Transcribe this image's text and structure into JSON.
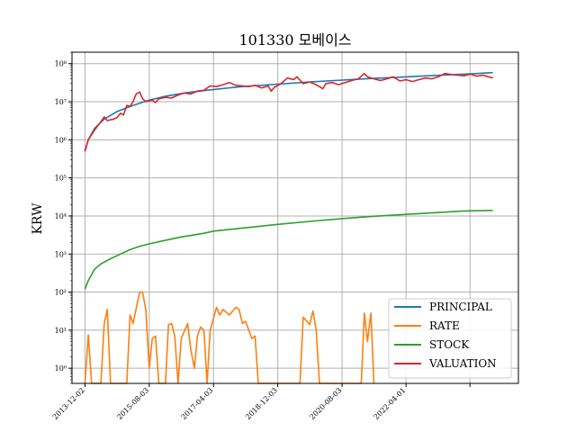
{
  "chart_data": {
    "type": "line",
    "title": "101330 모베이스",
    "xlabel": "",
    "ylabel": "KRW",
    "y_scale": "log",
    "ylim": [
      0.4,
      200000000
    ],
    "xlim": [
      "2013-08-01",
      "2025-03-01"
    ],
    "grid": true,
    "legend_position": "bottom-right",
    "x_ticks": [
      "2013-12-02",
      "2015-08-03",
      "2017-04-03",
      "2018-12-03",
      "2020-08-03",
      "2022-04-01"
    ],
    "y_ticks": [
      {
        "value": 1,
        "label": "10⁰"
      },
      {
        "value": 10,
        "label": "10¹"
      },
      {
        "value": 100,
        "label": "10²"
      },
      {
        "value": 1000,
        "label": "10³"
      },
      {
        "value": 10000,
        "label": "10⁴"
      },
      {
        "value": 100000,
        "label": "10⁵"
      },
      {
        "value": 1000000,
        "label": "10⁶"
      },
      {
        "value": 10000000,
        "label": "10⁷"
      },
      {
        "value": 100000000,
        "label": "10⁸"
      }
    ],
    "series": [
      {
        "name": "PRINCIPAL",
        "color": "#1f77b4",
        "points": [
          [
            "2013-12-02",
            500000
          ],
          [
            "2014-01-02",
            1000000
          ],
          [
            "2014-03-03",
            2000000
          ],
          [
            "2014-06-02",
            3500000
          ],
          [
            "2014-10-01",
            5500000
          ],
          [
            "2015-03-02",
            8000000
          ],
          [
            "2015-08-03",
            11000000
          ],
          [
            "2016-01-04",
            14000000
          ],
          [
            "2016-08-01",
            17500000
          ],
          [
            "2017-04-03",
            21000000
          ],
          [
            "2018-01-02",
            25000000
          ],
          [
            "2018-12-03",
            29000000
          ],
          [
            "2019-10-01",
            33000000
          ],
          [
            "2020-08-03",
            37000000
          ],
          [
            "2021-06-01",
            41000000
          ],
          [
            "2022-04-01",
            45000000
          ],
          [
            "2023-01-02",
            49000000
          ],
          [
            "2023-10-04",
            53000000
          ],
          [
            "2024-07-01",
            58000000
          ]
        ]
      },
      {
        "name": "RATE",
        "color": "#ff7f0e",
        "points": [
          [
            "2013-12-02",
            0.3
          ],
          [
            "2014-01-02",
            7.5
          ],
          [
            "2014-02-03",
            0.3
          ],
          [
            "2014-05-02",
            0.3
          ],
          [
            "2014-06-02",
            15
          ],
          [
            "2014-07-01",
            35
          ],
          [
            "2014-08-01",
            0.3
          ],
          [
            "2015-01-02",
            0.3
          ],
          [
            "2015-02-02",
            25
          ],
          [
            "2015-03-02",
            15
          ],
          [
            "2015-05-04",
            100
          ],
          [
            "2015-06-01",
            100
          ],
          [
            "2015-07-01",
            35
          ],
          [
            "2015-08-03",
            1
          ],
          [
            "2015-09-01",
            6
          ],
          [
            "2015-10-01",
            7
          ],
          [
            "2015-11-02",
            0.3
          ],
          [
            "2016-01-04",
            0.3
          ],
          [
            "2016-02-01",
            14
          ],
          [
            "2016-03-02",
            15
          ],
          [
            "2016-04-01",
            7
          ],
          [
            "2016-05-02",
            0.3
          ],
          [
            "2016-06-01",
            6
          ],
          [
            "2016-08-01",
            15
          ],
          [
            "2016-09-01",
            3
          ],
          [
            "2016-10-04",
            1
          ],
          [
            "2016-11-01",
            7
          ],
          [
            "2016-12-01",
            12
          ],
          [
            "2017-01-02",
            10
          ],
          [
            "2017-02-01",
            0.3
          ],
          [
            "2017-03-02",
            10
          ],
          [
            "2017-04-03",
            20
          ],
          [
            "2017-05-01",
            40
          ],
          [
            "2017-06-01",
            25
          ],
          [
            "2017-07-03",
            35
          ],
          [
            "2017-09-01",
            25
          ],
          [
            "2017-11-01",
            40
          ],
          [
            "2017-12-01",
            35
          ],
          [
            "2018-01-02",
            15
          ],
          [
            "2018-02-01",
            17
          ],
          [
            "2018-04-02",
            6
          ],
          [
            "2018-05-02",
            7
          ],
          [
            "2018-06-01",
            0.3
          ],
          [
            "2019-07-01",
            0.3
          ],
          [
            "2019-08-01",
            22
          ],
          [
            "2019-10-01",
            14
          ],
          [
            "2019-11-01",
            32
          ],
          [
            "2019-12-02",
            10
          ],
          [
            "2020-01-02",
            0.3
          ],
          [
            "2021-02-01",
            0.3
          ],
          [
            "2021-03-02",
            28
          ],
          [
            "2021-04-01",
            5
          ],
          [
            "2021-05-03",
            28
          ],
          [
            "2021-06-01",
            0.3
          ]
        ]
      },
      {
        "name": "STOCK",
        "color": "#2ca02c",
        "points": [
          [
            "2013-12-02",
            120
          ],
          [
            "2014-01-02",
            200
          ],
          [
            "2014-03-03",
            400
          ],
          [
            "2014-05-02",
            550
          ],
          [
            "2014-08-01",
            750
          ],
          [
            "2014-11-03",
            1000
          ],
          [
            "2015-02-02",
            1300
          ],
          [
            "2015-05-04",
            1600
          ],
          [
            "2015-08-03",
            1850
          ],
          [
            "2015-12-01",
            2200
          ],
          [
            "2016-06-01",
            2800
          ],
          [
            "2017-01-02",
            3500
          ],
          [
            "2017-04-03",
            4000
          ],
          [
            "2018-01-02",
            4800
          ],
          [
            "2018-12-03",
            6000
          ],
          [
            "2019-10-01",
            7200
          ],
          [
            "2020-08-03",
            8500
          ],
          [
            "2021-06-01",
            9800
          ],
          [
            "2022-04-01",
            11000
          ],
          [
            "2023-01-02",
            12200
          ],
          [
            "2023-10-04",
            13500
          ],
          [
            "2024-07-01",
            14000
          ]
        ]
      },
      {
        "name": "VALUATION",
        "color": "#d62728",
        "points": [
          [
            "2013-12-02",
            500000
          ],
          [
            "2014-01-02",
            1000000
          ],
          [
            "2014-03-03",
            1800000
          ],
          [
            "2014-05-02",
            3000000
          ],
          [
            "2014-06-02",
            4000000
          ],
          [
            "2014-07-01",
            3200000
          ],
          [
            "2014-09-01",
            3500000
          ],
          [
            "2014-10-01",
            3800000
          ],
          [
            "2014-11-03",
            5000000
          ],
          [
            "2014-12-01",
            4500000
          ],
          [
            "2015-01-02",
            8000000
          ],
          [
            "2015-02-02",
            7500000
          ],
          [
            "2015-03-02",
            10000000
          ],
          [
            "2015-04-01",
            16000000
          ],
          [
            "2015-05-04",
            18000000
          ],
          [
            "2015-06-01",
            12000000
          ],
          [
            "2015-07-01",
            10000000
          ],
          [
            "2015-08-03",
            10500000
          ],
          [
            "2015-09-01",
            11000000
          ],
          [
            "2015-10-01",
            9500000
          ],
          [
            "2015-11-02",
            12000000
          ],
          [
            "2016-01-04",
            13000000
          ],
          [
            "2016-03-02",
            12500000
          ],
          [
            "2016-05-02",
            15000000
          ],
          [
            "2016-07-01",
            17000000
          ],
          [
            "2016-09-01",
            16000000
          ],
          [
            "2016-11-01",
            19000000
          ],
          [
            "2017-01-02",
            20000000
          ],
          [
            "2017-03-02",
            26000000
          ],
          [
            "2017-05-01",
            25000000
          ],
          [
            "2017-07-03",
            28000000
          ],
          [
            "2017-09-01",
            32000000
          ],
          [
            "2017-11-01",
            27000000
          ],
          [
            "2018-01-02",
            26000000
          ],
          [
            "2018-03-02",
            25000000
          ],
          [
            "2018-05-02",
            27000000
          ],
          [
            "2018-07-02",
            23000000
          ],
          [
            "2018-09-03",
            26000000
          ],
          [
            "2018-10-01",
            19000000
          ],
          [
            "2018-11-01",
            24000000
          ],
          [
            "2019-01-02",
            30000000
          ],
          [
            "2019-03-04",
            42000000
          ],
          [
            "2019-05-02",
            38000000
          ],
          [
            "2019-06-03",
            45000000
          ],
          [
            "2019-08-01",
            30000000
          ],
          [
            "2019-10-01",
            33000000
          ],
          [
            "2019-12-02",
            28000000
          ],
          [
            "2020-02-03",
            22000000
          ],
          [
            "2020-03-02",
            30000000
          ],
          [
            "2020-05-04",
            32000000
          ],
          [
            "2020-07-01",
            28000000
          ],
          [
            "2020-09-01",
            32000000
          ],
          [
            "2020-11-02",
            36000000
          ],
          [
            "2021-01-04",
            40000000
          ],
          [
            "2021-03-02",
            55000000
          ],
          [
            "2021-04-01",
            45000000
          ],
          [
            "2021-06-01",
            40000000
          ],
          [
            "2021-08-02",
            36000000
          ],
          [
            "2021-10-01",
            40000000
          ],
          [
            "2021-12-01",
            45000000
          ],
          [
            "2022-02-03",
            35000000
          ],
          [
            "2022-04-01",
            38000000
          ],
          [
            "2022-06-02",
            34000000
          ],
          [
            "2022-08-01",
            38000000
          ],
          [
            "2022-10-04",
            42000000
          ],
          [
            "2022-12-01",
            40000000
          ],
          [
            "2023-02-01",
            45000000
          ],
          [
            "2023-04-03",
            55000000
          ],
          [
            "2023-06-01",
            52000000
          ],
          [
            "2023-08-01",
            50000000
          ],
          [
            "2023-10-04",
            48000000
          ],
          [
            "2023-12-01",
            53000000
          ],
          [
            "2024-02-01",
            47000000
          ],
          [
            "2024-04-01",
            50000000
          ],
          [
            "2024-07-01",
            42000000
          ]
        ]
      }
    ]
  }
}
